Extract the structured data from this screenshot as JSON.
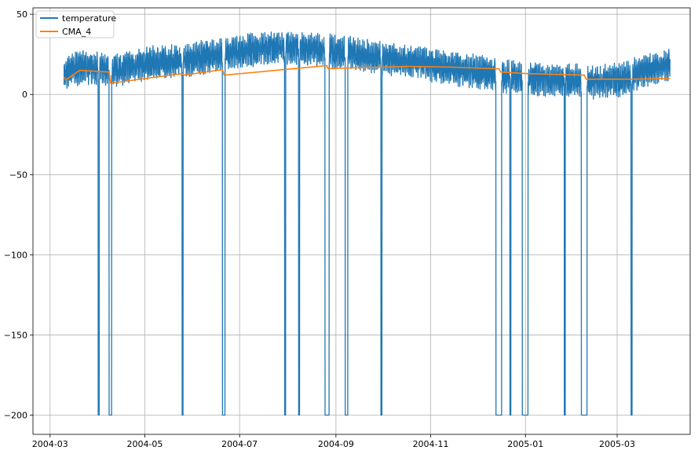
{
  "chart_data": {
    "type": "line",
    "title": "",
    "xlabel": "",
    "ylabel": "",
    "xlim": [
      "2004-02-19",
      "2005-04-17"
    ],
    "ylim": [
      -212,
      54
    ],
    "grid": true,
    "legend_position": "top-left",
    "x_ticks": [
      {
        "date": "2004-03-01",
        "label": "2004-03"
      },
      {
        "date": "2004-05-01",
        "label": "2004-05"
      },
      {
        "date": "2004-07-01",
        "label": "2004-07"
      },
      {
        "date": "2004-09-01",
        "label": "2004-09"
      },
      {
        "date": "2004-11-01",
        "label": "2004-11"
      },
      {
        "date": "2005-01-01",
        "label": "2005-01"
      },
      {
        "date": "2005-03-01",
        "label": "2005-03"
      }
    ],
    "y_ticks": [
      {
        "value": 50,
        "label": "50"
      },
      {
        "value": 0,
        "label": "0"
      },
      {
        "value": -50,
        "label": "−50"
      },
      {
        "value": -100,
        "label": "−100"
      },
      {
        "value": -150,
        "label": "−150"
      },
      {
        "value": -200,
        "label": "−200"
      }
    ],
    "series": [
      {
        "name": "temperature",
        "color": "#1f77b4",
        "style": "noisy sensor signal with dropouts to -200",
        "x_start": "2004-03-10",
        "x_end": "2005-04-04",
        "trend": [
          [
            "2004-03-10",
            11
          ],
          [
            "2004-03-15",
            16
          ],
          [
            "2004-03-25",
            17
          ],
          [
            "2004-04-10",
            15
          ],
          [
            "2004-05-01",
            19
          ],
          [
            "2004-06-01",
            22
          ],
          [
            "2004-06-20",
            25
          ],
          [
            "2004-07-15",
            29
          ],
          [
            "2004-08-01",
            29
          ],
          [
            "2004-08-20",
            28
          ],
          [
            "2004-09-10",
            26
          ],
          [
            "2004-10-01",
            22
          ],
          [
            "2004-10-20",
            21
          ],
          [
            "2004-11-10",
            17
          ],
          [
            "2004-12-10",
            13
          ],
          [
            "2005-01-01",
            10
          ],
          [
            "2005-01-20",
            9
          ],
          [
            "2005-02-15",
            8
          ],
          [
            "2005-03-01",
            9
          ],
          [
            "2005-03-20",
            15
          ],
          [
            "2005-04-04",
            19
          ]
        ],
        "dropouts": [
          [
            "2004-04-01",
            "2004-04-01"
          ],
          [
            "2004-04-08",
            "2004-04-09"
          ],
          [
            "2004-05-25",
            "2004-05-25"
          ],
          [
            "2004-06-20",
            "2004-06-21"
          ],
          [
            "2004-07-30",
            "2004-07-30"
          ],
          [
            "2004-08-08",
            "2004-08-08"
          ],
          [
            "2004-08-25",
            "2004-08-27"
          ],
          [
            "2004-09-07",
            "2004-09-08"
          ],
          [
            "2004-09-30",
            "2004-09-30"
          ],
          [
            "2004-12-13",
            "2004-12-16"
          ],
          [
            "2004-12-22",
            "2004-12-22"
          ],
          [
            "2004-12-30",
            "2005-01-02"
          ],
          [
            "2005-01-26",
            "2005-01-26"
          ],
          [
            "2005-02-06",
            "2005-02-09"
          ],
          [
            "2005-03-10",
            "2005-03-10"
          ]
        ],
        "dropout_value": -200
      },
      {
        "name": "CMA_4",
        "color": "#ff7f0e",
        "points": [
          [
            "2004-03-10",
            11
          ],
          [
            "2004-03-11",
            9
          ],
          [
            "2004-03-20",
            15
          ],
          [
            "2004-04-08",
            14
          ],
          [
            "2004-04-09",
            7
          ],
          [
            "2004-05-25",
            13
          ],
          [
            "2004-05-26",
            12
          ],
          [
            "2004-06-20",
            15.5
          ],
          [
            "2004-06-21",
            12
          ],
          [
            "2004-08-26",
            18
          ],
          [
            "2004-08-27",
            16
          ],
          [
            "2004-09-08",
            16.5
          ],
          [
            "2004-10-20",
            17.5
          ],
          [
            "2004-11-15",
            17
          ],
          [
            "2004-12-15",
            16
          ],
          [
            "2004-12-16",
            14
          ],
          [
            "2005-01-02",
            13
          ],
          [
            "2005-02-08",
            12
          ],
          [
            "2005-02-09",
            9.5
          ],
          [
            "2005-03-10",
            9.5
          ],
          [
            "2005-04-04",
            10
          ]
        ]
      }
    ]
  }
}
